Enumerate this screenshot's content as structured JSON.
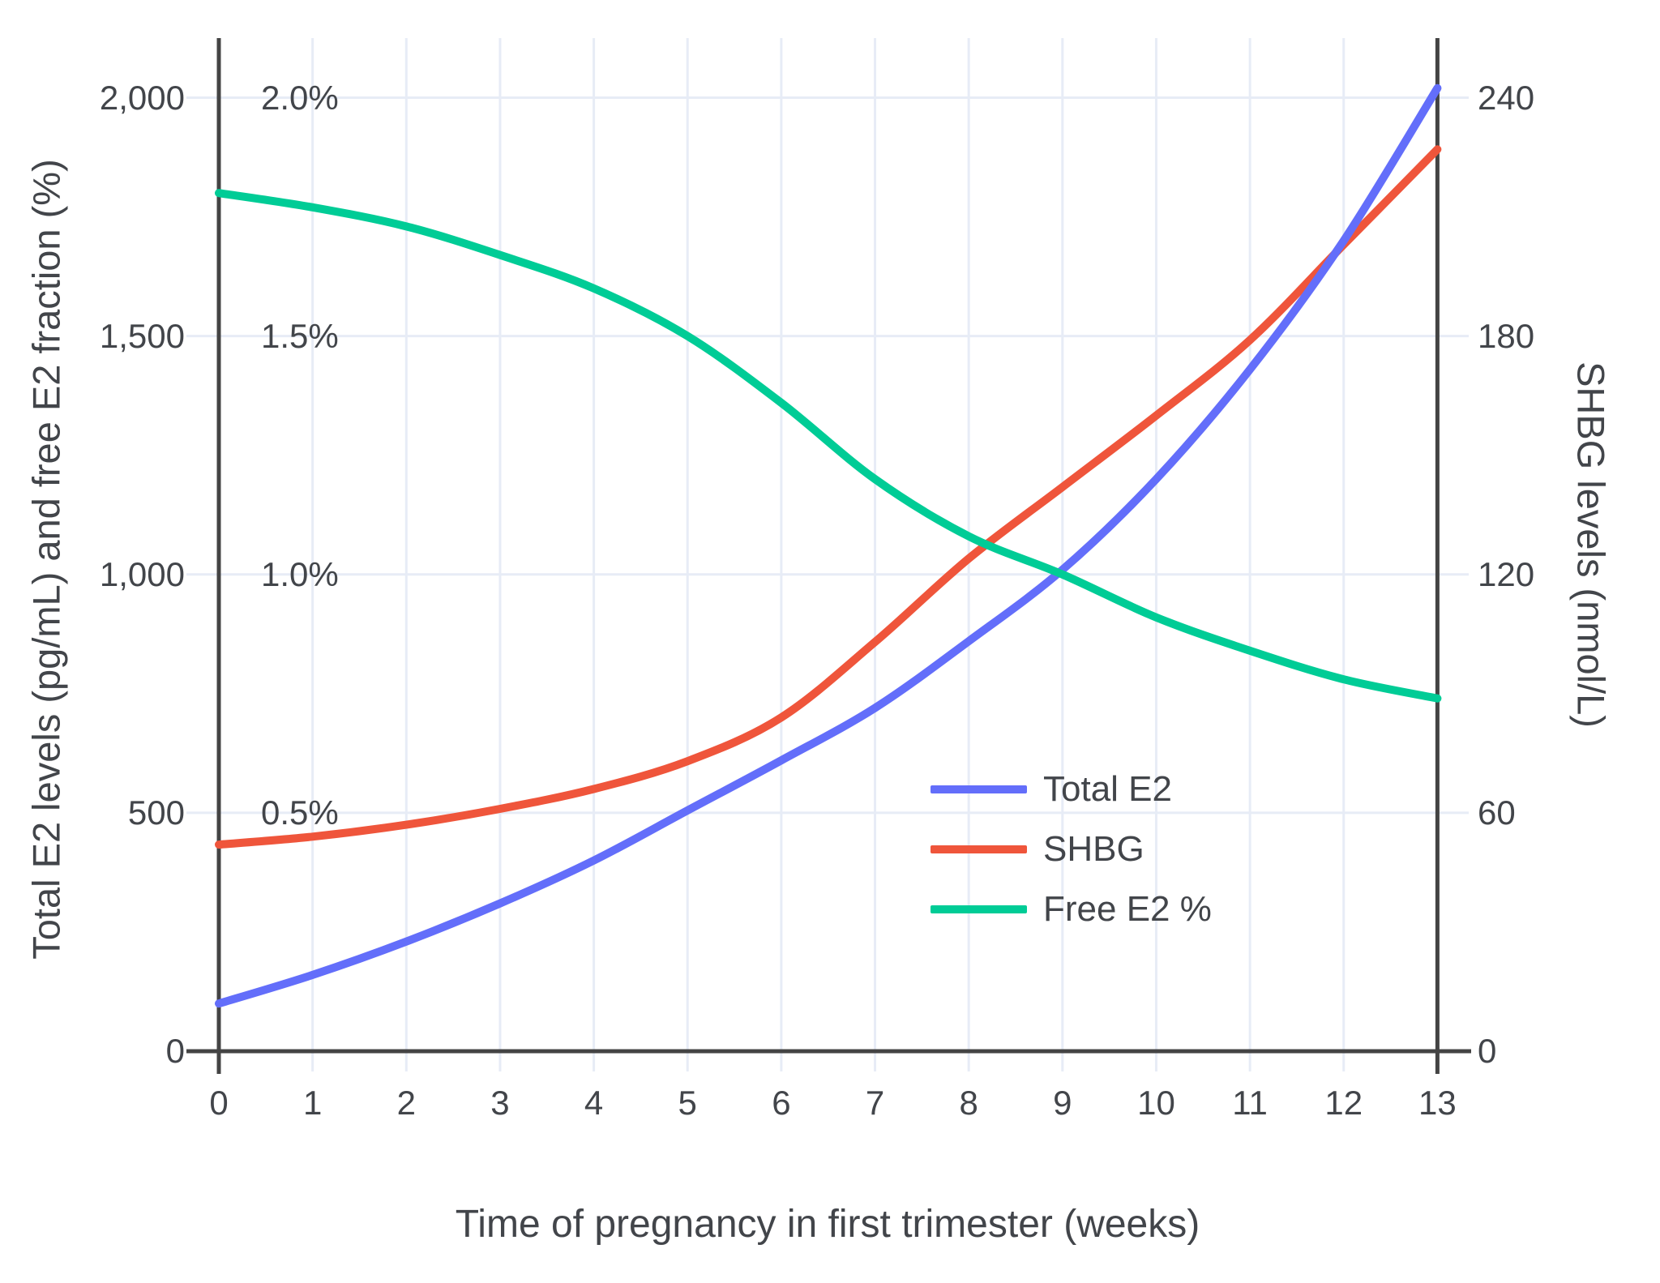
{
  "chart_data": {
    "type": "line",
    "title": "",
    "xlabel": "Time of pregnancy in first trimester (weeks)",
    "ylabel_left": "Total E2 levels (pg/mL) and free E2 fraction (%)",
    "ylabel_right": "SHBG levels (nmol/L)",
    "x": [
      0,
      1,
      2,
      3,
      4,
      5,
      6,
      7,
      8,
      9,
      10,
      11,
      12,
      13
    ],
    "x_tick_labels": [
      "0",
      "1",
      "2",
      "3",
      "4",
      "5",
      "6",
      "7",
      "8",
      "9",
      "10",
      "11",
      "12",
      "13"
    ],
    "left_axis": {
      "tick_labels": [
        "0",
        "500",
        "1,000",
        "1,500",
        "2,000"
      ],
      "tick_values": [
        0,
        500,
        1000,
        1500,
        2000
      ],
      "range": [
        0,
        2125
      ]
    },
    "left_pct_axis": {
      "tick_labels": [
        "0.5%",
        "1.0%",
        "1.5%",
        "2.0%"
      ],
      "tick_values": [
        0.5,
        1.0,
        1.5,
        2.0
      ]
    },
    "right_axis": {
      "tick_labels": [
        "0",
        "60",
        "120",
        "180",
        "240"
      ],
      "tick_values": [
        0,
        60,
        120,
        180,
        240
      ],
      "range": [
        0,
        255
      ]
    },
    "grid": true,
    "legend_position": "inside-right-middle",
    "series": [
      {
        "name": "Total E2",
        "units": "pg/mL",
        "axis": "left_e2",
        "color": "#636efa",
        "values": [
          100,
          160,
          230,
          310,
          400,
          505,
          610,
          720,
          860,
          1010,
          1200,
          1430,
          1700,
          2020
        ]
      },
      {
        "name": "SHBG",
        "units": "nmol/L",
        "axis": "right",
        "color": "#ef553b",
        "values": [
          52,
          54,
          57,
          61,
          66,
          73,
          84,
          103,
          124,
          142,
          160,
          179,
          203,
          227
        ]
      },
      {
        "name": "Free E2 %",
        "units": "%",
        "axis": "left_pct",
        "color": "#00cc96",
        "values": [
          1.8,
          1.77,
          1.73,
          1.67,
          1.6,
          1.5,
          1.36,
          1.2,
          1.08,
          1.0,
          0.91,
          0.84,
          0.78,
          0.74
        ]
      }
    ]
  },
  "colors": {
    "grid": "#e7ecf6",
    "axis": "#444444",
    "text": "#42454a",
    "background": "#ffffff"
  }
}
